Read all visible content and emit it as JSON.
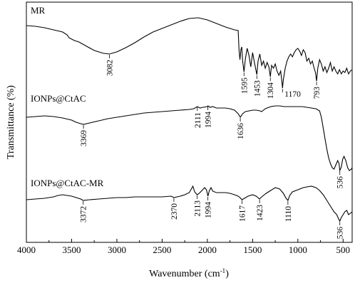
{
  "chart_data": {
    "type": "line",
    "xlabel": "Wavenumber (cm",
    "xlabel_sup": "-1",
    "xlabel_end": ")",
    "ylabel": "Transmittance (%)",
    "xlim": [
      4000,
      400
    ],
    "x_ticks": [
      "4000",
      "3500",
      "3000",
      "2500",
      "2000",
      "1500",
      "1000",
      "500"
    ],
    "y_ticks_shown": false,
    "series": [
      {
        "name": "MR",
        "points": [
          [
            4000,
            36
          ],
          [
            3900,
            37
          ],
          [
            3800,
            39
          ],
          [
            3700,
            42
          ],
          [
            3600,
            45
          ],
          [
            3550,
            49
          ],
          [
            3530,
            53
          ],
          [
            3500,
            55
          ],
          [
            3470,
            57
          ],
          [
            3420,
            59
          ],
          [
            3350,
            64
          ],
          [
            3250,
            71
          ],
          [
            3150,
            75
          ],
          [
            3082,
            76
          ],
          [
            3000,
            73
          ],
          [
            2900,
            67
          ],
          [
            2800,
            60
          ],
          [
            2700,
            52
          ],
          [
            2600,
            45
          ],
          [
            2500,
            40
          ],
          [
            2400,
            35
          ],
          [
            2300,
            30
          ],
          [
            2200,
            26
          ],
          [
            2100,
            25
          ],
          [
            2000,
            28
          ],
          [
            1900,
            33
          ],
          [
            1800,
            38
          ],
          [
            1700,
            42
          ],
          [
            1660,
            43
          ],
          [
            1650,
            70
          ],
          [
            1640,
            84
          ],
          [
            1630,
            70
          ],
          [
            1620,
            66
          ],
          [
            1610,
            86
          ],
          [
            1595,
            101
          ],
          [
            1580,
            83
          ],
          [
            1560,
            68
          ],
          [
            1540,
            78
          ],
          [
            1520,
            94
          ],
          [
            1500,
            74
          ],
          [
            1480,
            88
          ],
          [
            1453,
            105
          ],
          [
            1440,
            86
          ],
          [
            1420,
            76
          ],
          [
            1400,
            92
          ],
          [
            1380,
            86
          ],
          [
            1360,
            96
          ],
          [
            1340,
            88
          ],
          [
            1320,
            94
          ],
          [
            1304,
            108
          ],
          [
            1290,
            92
          ],
          [
            1270,
            96
          ],
          [
            1250,
            90
          ],
          [
            1230,
            100
          ],
          [
            1210,
            106
          ],
          [
            1190,
            100
          ],
          [
            1175,
            116
          ],
          [
            1170,
            124
          ],
          [
            1160,
            112
          ],
          [
            1150,
            104
          ],
          [
            1140,
            96
          ],
          [
            1120,
            86
          ],
          [
            1100,
            80
          ],
          [
            1080,
            76
          ],
          [
            1060,
            80
          ],
          [
            1040,
            74
          ],
          [
            1020,
            70
          ],
          [
            1000,
            68
          ],
          [
            980,
            72
          ],
          [
            960,
            78
          ],
          [
            940,
            70
          ],
          [
            920,
            74
          ],
          [
            900,
            86
          ],
          [
            880,
            82
          ],
          [
            860,
            90
          ],
          [
            840,
            86
          ],
          [
            820,
            96
          ],
          [
            805,
            102
          ],
          [
            793,
            114
          ],
          [
            780,
            96
          ],
          [
            760,
            84
          ],
          [
            740,
            90
          ],
          [
            720,
            100
          ],
          [
            700,
            94
          ],
          [
            680,
            102
          ],
          [
            660,
            96
          ],
          [
            640,
            88
          ],
          [
            620,
            100
          ],
          [
            600,
            94
          ],
          [
            580,
            100
          ],
          [
            560,
            104
          ],
          [
            540,
            98
          ],
          [
            520,
            104
          ],
          [
            500,
            100
          ],
          [
            480,
            102
          ],
          [
            460,
            96
          ],
          [
            440,
            104
          ],
          [
            420,
            100
          ],
          [
            400,
            98
          ]
        ]
      },
      {
        "name": "IONPs@CtAC",
        "points": [
          [
            4000,
            165
          ],
          [
            3900,
            164
          ],
          [
            3800,
            163
          ],
          [
            3700,
            164
          ],
          [
            3600,
            166
          ],
          [
            3500,
            169
          ],
          [
            3450,
            172
          ],
          [
            3400,
            174
          ],
          [
            3369,
            175
          ],
          [
            3300,
            173
          ],
          [
            3200,
            170
          ],
          [
            3100,
            167
          ],
          [
            3000,
            165
          ],
          [
            2900,
            163
          ],
          [
            2800,
            161
          ],
          [
            2700,
            159
          ],
          [
            2600,
            158
          ],
          [
            2500,
            157
          ],
          [
            2400,
            156
          ],
          [
            2300,
            155
          ],
          [
            2200,
            154
          ],
          [
            2150,
            153
          ],
          [
            2111,
            150
          ],
          [
            2080,
            152
          ],
          [
            2050,
            151
          ],
          [
            2000,
            150
          ],
          [
            1994,
            149
          ],
          [
            1970,
            151
          ],
          [
            1940,
            150
          ],
          [
            1900,
            152
          ],
          [
            1850,
            152
          ],
          [
            1800,
            152
          ],
          [
            1750,
            153
          ],
          [
            1700,
            155
          ],
          [
            1660,
            160
          ],
          [
            1636,
            165
          ],
          [
            1610,
            160
          ],
          [
            1580,
            157
          ],
          [
            1540,
            156
          ],
          [
            1500,
            155
          ],
          [
            1460,
            155
          ],
          [
            1420,
            156
          ],
          [
            1400,
            157
          ],
          [
            1360,
            153
          ],
          [
            1300,
            150
          ],
          [
            1250,
            149
          ],
          [
            1200,
            149
          ],
          [
            1150,
            150
          ],
          [
            1100,
            150
          ],
          [
            1050,
            150
          ],
          [
            1000,
            150
          ],
          [
            950,
            150
          ],
          [
            900,
            151
          ],
          [
            850,
            152
          ],
          [
            800,
            153
          ],
          [
            760,
            156
          ],
          [
            740,
            165
          ],
          [
            720,
            180
          ],
          [
            700,
            195
          ],
          [
            680,
            210
          ],
          [
            660,
            222
          ],
          [
            640,
            230
          ],
          [
            620,
            236
          ],
          [
            600,
            238
          ],
          [
            580,
            232
          ],
          [
            560,
            226
          ],
          [
            545,
            230
          ],
          [
            536,
            240
          ],
          [
            520,
            235
          ],
          [
            505,
            224
          ],
          [
            490,
            220
          ],
          [
            470,
            226
          ],
          [
            450,
            236
          ],
          [
            430,
            240
          ],
          [
            410,
            238
          ],
          [
            400,
            236
          ]
        ]
      },
      {
        "name": "IONPs@CtAC-MR",
        "points": [
          [
            4000,
            281
          ],
          [
            3900,
            280
          ],
          [
            3800,
            279
          ],
          [
            3700,
            277
          ],
          [
            3650,
            275
          ],
          [
            3600,
            274
          ],
          [
            3500,
            276
          ],
          [
            3400,
            280
          ],
          [
            3372,
            282
          ],
          [
            3300,
            281
          ],
          [
            3200,
            280
          ],
          [
            3100,
            279
          ],
          [
            3000,
            278
          ],
          [
            2900,
            278
          ],
          [
            2800,
            277
          ],
          [
            2700,
            277
          ],
          [
            2600,
            277
          ],
          [
            2500,
            277
          ],
          [
            2400,
            276
          ],
          [
            2370,
            278
          ],
          [
            2300,
            276
          ],
          [
            2250,
            274
          ],
          [
            2200,
            271
          ],
          [
            2160,
            262
          ],
          [
            2140,
            270
          ],
          [
            2113,
            274
          ],
          [
            2090,
            272
          ],
          [
            2060,
            268
          ],
          [
            2030,
            264
          ],
          [
            2010,
            267
          ],
          [
            1994,
            276
          ],
          [
            1980,
            269
          ],
          [
            1960,
            264
          ],
          [
            1940,
            269
          ],
          [
            1900,
            271
          ],
          [
            1850,
            271
          ],
          [
            1800,
            271
          ],
          [
            1750,
            272
          ],
          [
            1700,
            274
          ],
          [
            1660,
            276
          ],
          [
            1640,
            278
          ],
          [
            1617,
            281
          ],
          [
            1590,
            279
          ],
          [
            1550,
            276
          ],
          [
            1500,
            274
          ],
          [
            1460,
            276
          ],
          [
            1423,
            280
          ],
          [
            1400,
            277
          ],
          [
            1350,
            272
          ],
          [
            1300,
            268
          ],
          [
            1250,
            264
          ],
          [
            1200,
            266
          ],
          [
            1160,
            272
          ],
          [
            1130,
            279
          ],
          [
            1110,
            282
          ],
          [
            1090,
            275
          ],
          [
            1060,
            270
          ],
          [
            1020,
            268
          ],
          [
            980,
            266
          ],
          [
            940,
            264
          ],
          [
            900,
            263
          ],
          [
            850,
            262
          ],
          [
            800,
            264
          ],
          [
            760,
            268
          ],
          [
            720,
            274
          ],
          [
            680,
            282
          ],
          [
            640,
            290
          ],
          [
            600,
            298
          ],
          [
            570,
            302
          ],
          [
            550,
            308
          ],
          [
            536,
            311
          ],
          [
            520,
            306
          ],
          [
            500,
            302
          ],
          [
            480,
            298
          ],
          [
            460,
            296
          ],
          [
            440,
            302
          ],
          [
            420,
            300
          ],
          [
            400,
            298
          ]
        ]
      }
    ],
    "peak_labels": [
      {
        "text": "3082",
        "x": 3082,
        "series": 0,
        "offset": 4
      },
      {
        "text": "1595",
        "x": 1595,
        "series": 0,
        "offset": 4
      },
      {
        "text": "1453",
        "x": 1453,
        "series": 0,
        "offset": 4
      },
      {
        "text": "1304",
        "x": 1304,
        "series": 0,
        "offset": 4
      },
      {
        "text": "1170",
        "x": 1170,
        "series": 0,
        "offset": 4,
        "horizontal": true
      },
      {
        "text": "793",
        "x": 793,
        "series": 0,
        "offset": 4
      },
      {
        "text": "3369",
        "x": 3369,
        "series": 1,
        "offset": 4
      },
      {
        "text": "2111",
        "x": 2111,
        "series": 1,
        "offset": 4
      },
      {
        "text": "1994",
        "x": 1994,
        "series": 1,
        "offset": 4
      },
      {
        "text": "1636",
        "x": 1636,
        "series": 1,
        "offset": 4
      },
      {
        "text": "536",
        "x": 536,
        "series": 1,
        "offset": 4
      },
      {
        "text": "3372",
        "x": 3372,
        "series": 2,
        "offset": 4
      },
      {
        "text": "2370",
        "x": 2370,
        "series": 2,
        "offset": 4
      },
      {
        "text": "2113",
        "x": 2113,
        "series": 2,
        "offset": 4
      },
      {
        "text": "1994",
        "x": 1994,
        "series": 2,
        "offset": 4
      },
      {
        "text": "1617",
        "x": 1617,
        "series": 2,
        "offset": 4
      },
      {
        "text": "1423",
        "x": 1423,
        "series": 2,
        "offset": 4
      },
      {
        "text": "1110",
        "x": 1110,
        "series": 2,
        "offset": 4
      },
      {
        "text": "536",
        "x": 536,
        "series": 2,
        "offset": 4
      }
    ]
  }
}
